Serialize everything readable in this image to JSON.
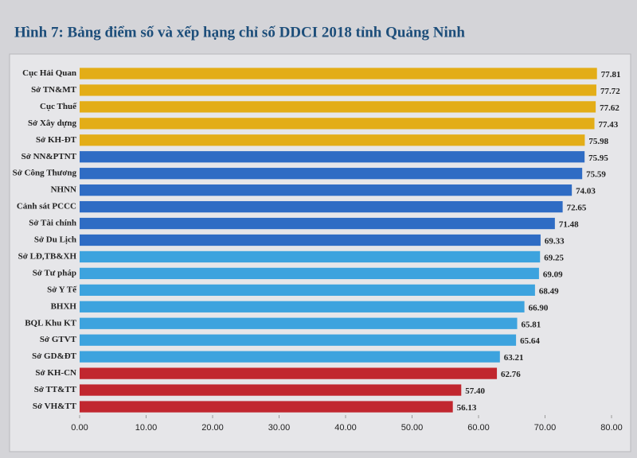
{
  "chart_data": {
    "type": "hbar",
    "title": "Hình 7: Bảng điểm số và xếp hạng chỉ số DDCI 2018 tỉnh Quảng Ninh",
    "categories": [
      "Cục Hải Quan",
      "Sở TN&MT",
      "Cục Thuế",
      "Sở Xây dựng",
      "Sở KH-ĐT",
      "Sở NN&PTNT",
      "Sở Công Thương",
      "NHNN",
      "Cảnh sát PCCC",
      "Sở Tài chính",
      "Sở Du Lịch",
      "Sở LĐ,TB&XH",
      "Sở Tư pháp",
      "Sở Y Tế",
      "BHXH",
      "BQL Khu KT",
      "Sở GTVT",
      "Sở GD&ĐT",
      "Sở KH-CN",
      "Sở TT&TT",
      "Sở VH&TT"
    ],
    "values": [
      77.81,
      77.72,
      77.62,
      77.43,
      75.98,
      75.95,
      75.59,
      74.03,
      72.65,
      71.48,
      69.33,
      69.25,
      69.09,
      68.49,
      66.9,
      65.81,
      65.64,
      63.21,
      62.76,
      57.4,
      56.13
    ],
    "value_labels": [
      "77.81",
      "77.72",
      "77.62",
      "77.43",
      "75.98",
      "75.95",
      "75.59",
      "74.03",
      "72.65",
      "71.48",
      "69.33",
      "69.25",
      "69.09",
      "68.49",
      "66.90",
      "65.81",
      "65.64",
      "63.21",
      "62.76",
      "57.40",
      "56.13"
    ],
    "colors": [
      "#e3ad17",
      "#e3ad17",
      "#e3ad17",
      "#e3ad17",
      "#e3ad17",
      "#2f6cc4",
      "#2f6cc4",
      "#2f6cc4",
      "#2f6cc4",
      "#2f6cc4",
      "#2f6cc4",
      "#3da3de",
      "#3da3de",
      "#3da3de",
      "#3da3de",
      "#3da3de",
      "#3da3de",
      "#3da3de",
      "#c1272f",
      "#c1272f",
      "#c1272f"
    ],
    "xlim": [
      0,
      80
    ],
    "xticks": [
      {
        "value": 0,
        "label": "0.00"
      },
      {
        "value": 10,
        "label": "10.00"
      },
      {
        "value": 20,
        "label": "20.00"
      },
      {
        "value": 30,
        "label": "30.00"
      },
      {
        "value": 40,
        "label": "40.00"
      },
      {
        "value": 50,
        "label": "50.00"
      },
      {
        "value": 60,
        "label": "60.00"
      },
      {
        "value": 70,
        "label": "70.00"
      },
      {
        "value": 80,
        "label": "80.00"
      }
    ]
  }
}
